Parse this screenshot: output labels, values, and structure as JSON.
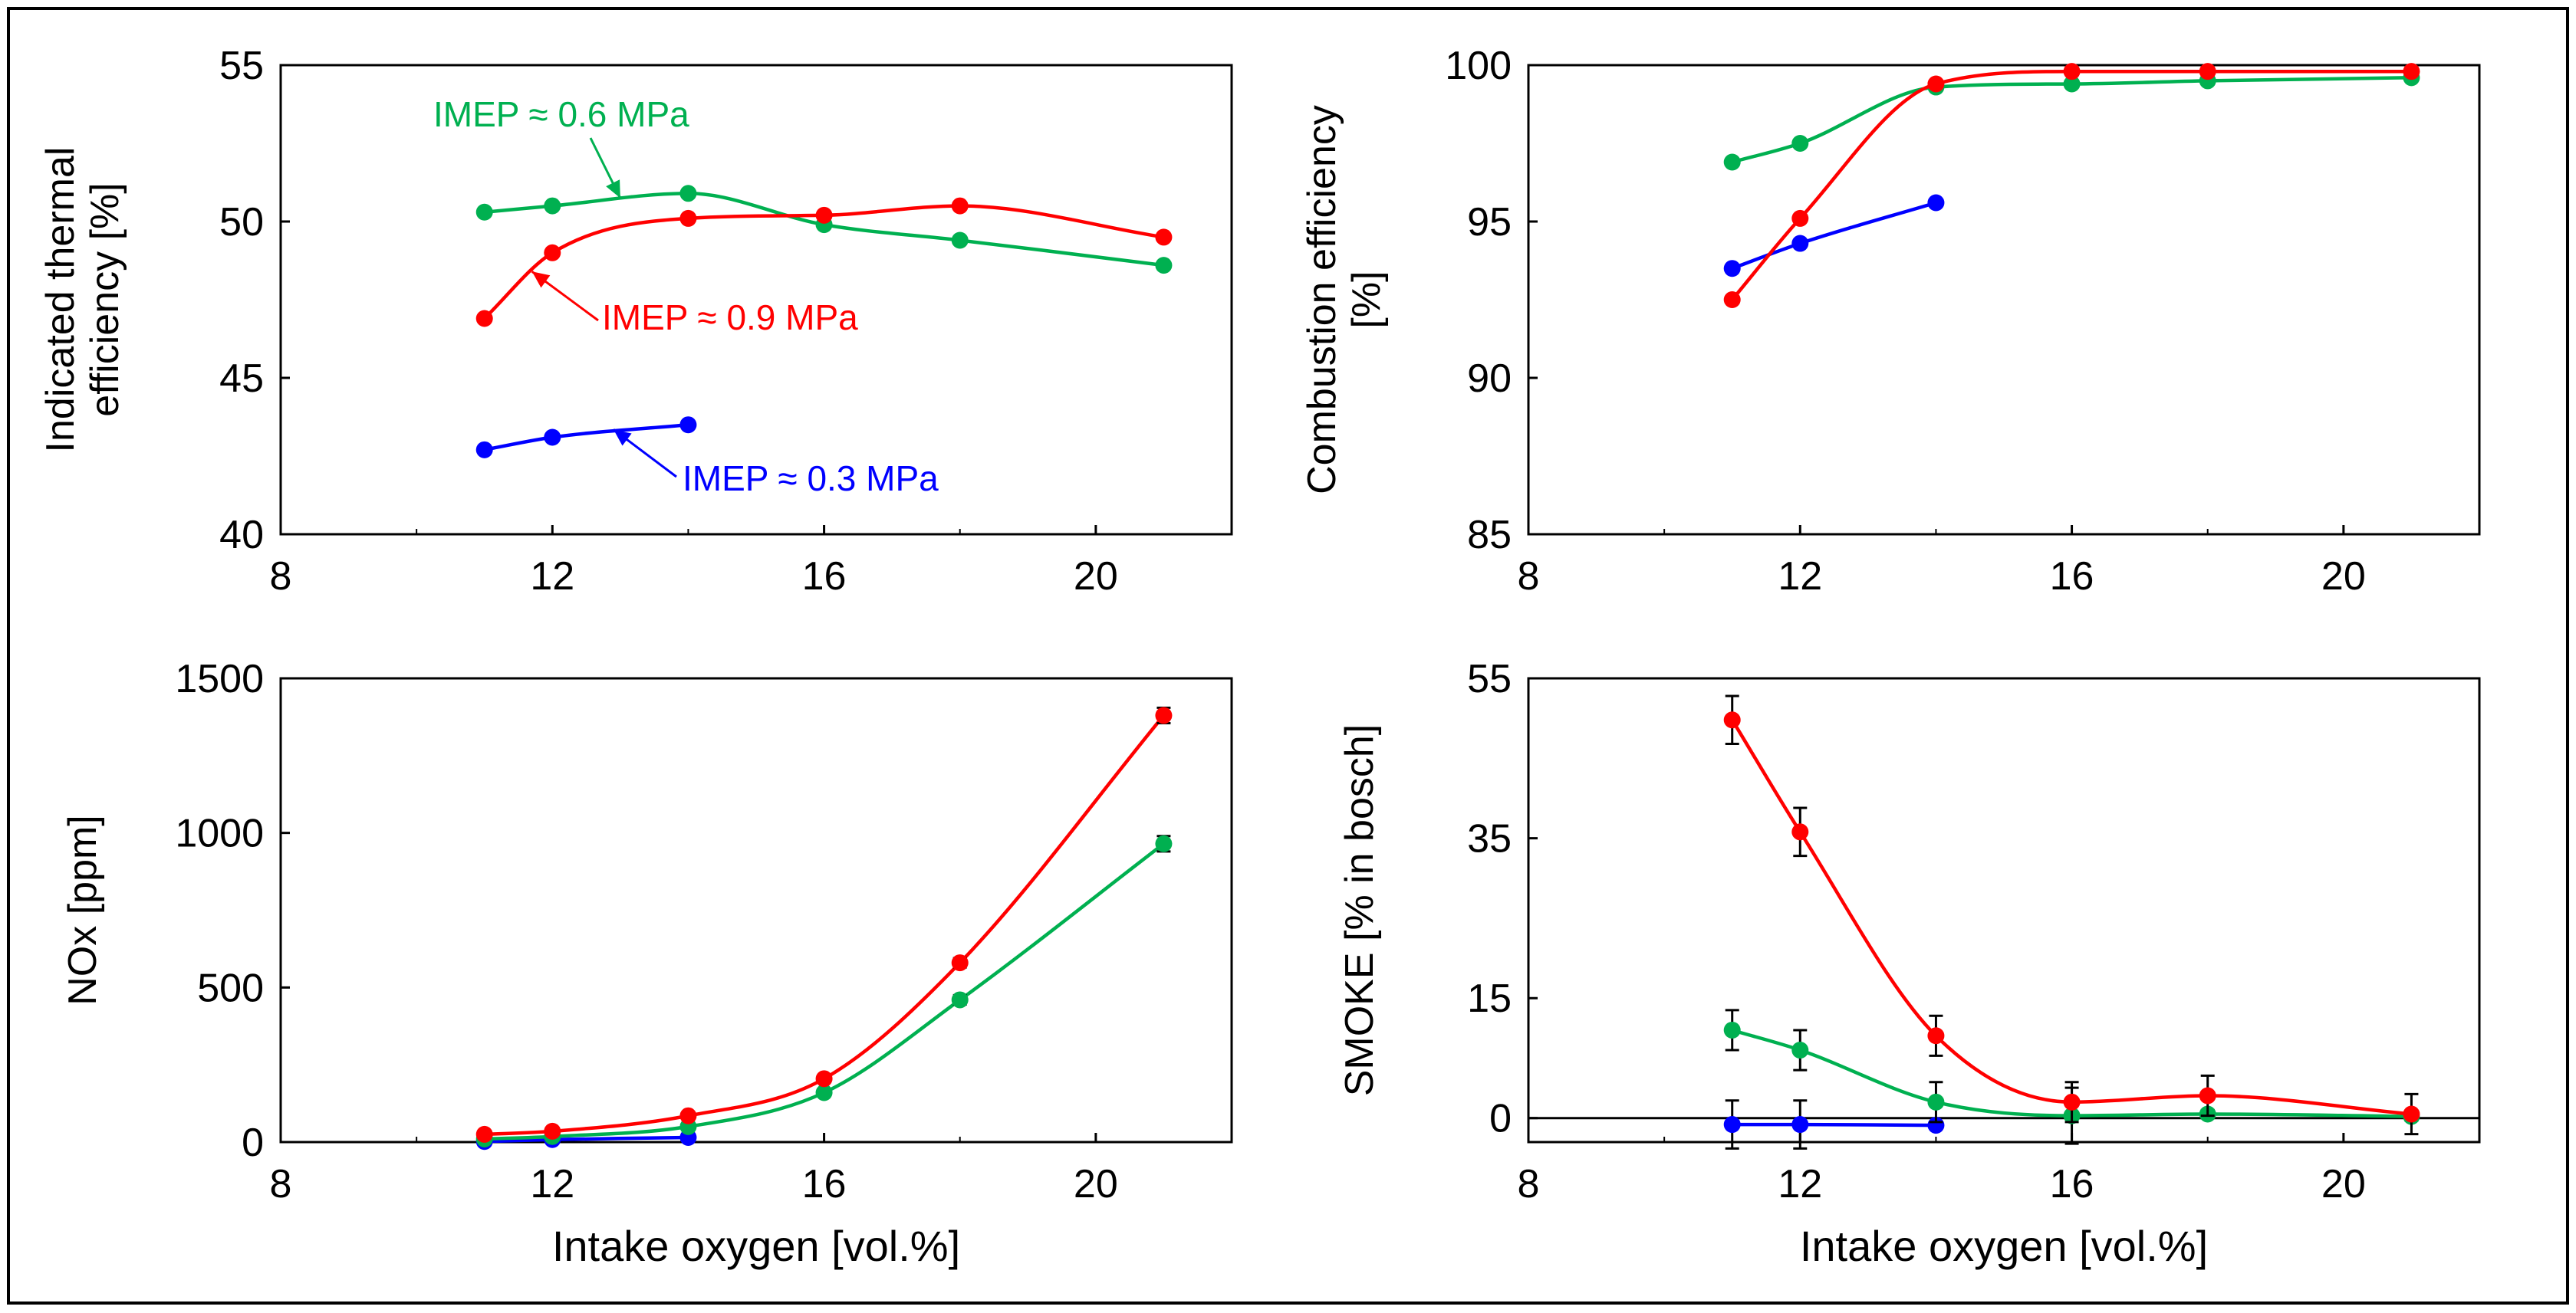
{
  "colors": {
    "low_load": "#0000ff",
    "mid_load": "#00b050",
    "high_load": "#ff0000",
    "axis": "#000000"
  },
  "chart_data": [
    {
      "id": "ite",
      "type": "scatter",
      "title": "",
      "xlabel": "",
      "ylabel_lines": [
        "Indicated thermal",
        "efficiency [%]"
      ],
      "xlim": [
        8,
        22
      ],
      "ylim": [
        40,
        55
      ],
      "xticks": [
        8,
        12,
        16,
        20
      ],
      "yticks": [
        40,
        45,
        50,
        55
      ],
      "grid": false,
      "series": [
        {
          "name": "IMEP ≈ 0.3 MPa",
          "color": "#0000ff",
          "x": [
            11,
            12,
            14
          ],
          "y": [
            42.7,
            43.1,
            43.5
          ]
        },
        {
          "name": "IMEP ≈ 0.6 MPa",
          "color": "#00b050",
          "x": [
            11,
            12,
            14,
            16,
            18,
            21
          ],
          "y": [
            50.3,
            50.5,
            50.9,
            49.9,
            49.4,
            48.6
          ]
        },
        {
          "name": "IMEP ≈ 0.9 MPa",
          "color": "#ff0000",
          "x": [
            11,
            12,
            14,
            16,
            18,
            21
          ],
          "y": [
            46.9,
            49.0,
            50.1,
            50.2,
            50.5,
            49.5
          ]
        }
      ],
      "annotations": [
        {
          "text": "IMEP ≈ 0.6 MPa",
          "series": 1
        },
        {
          "text": "IMEP ≈ 0.9 MPa",
          "series": 2
        },
        {
          "text": "IMEP ≈ 0.3 MPa",
          "series": 0
        }
      ]
    },
    {
      "id": "ce",
      "type": "scatter",
      "title": "",
      "xlabel": "",
      "ylabel_lines": [
        "Combustion efficiency",
        "[%]"
      ],
      "xlim": [
        8,
        22
      ],
      "ylim": [
        85,
        100
      ],
      "xticks": [
        8,
        12,
        16,
        20
      ],
      "yticks": [
        85,
        90,
        95,
        100
      ],
      "grid": false,
      "series": [
        {
          "name": "IMEP ≈ 0.3 MPa",
          "color": "#0000ff",
          "x": [
            11,
            12,
            14
          ],
          "y": [
            93.5,
            94.3,
            95.6
          ]
        },
        {
          "name": "IMEP ≈ 0.6 MPa",
          "color": "#00b050",
          "x": [
            11,
            12,
            14,
            16,
            18,
            21
          ],
          "y": [
            96.9,
            97.5,
            99.3,
            99.4,
            99.5,
            99.6
          ]
        },
        {
          "name": "IMEP ≈ 0.9 MPa",
          "color": "#ff0000",
          "x": [
            11,
            12,
            14,
            16,
            18,
            21
          ],
          "y": [
            92.5,
            95.1,
            99.4,
            99.8,
            99.8,
            99.8
          ]
        }
      ]
    },
    {
      "id": "nox",
      "type": "scatter",
      "title": "",
      "xlabel": "Intake oxygen  [vol.%]",
      "ylabel_lines": [
        "NOx [ppm]"
      ],
      "xlim": [
        8,
        22
      ],
      "ylim": [
        0,
        1500
      ],
      "xticks": [
        8,
        12,
        16,
        20
      ],
      "yticks": [
        0,
        500,
        1000,
        1500
      ],
      "grid": false,
      "series": [
        {
          "name": "IMEP ≈ 0.3 MPa",
          "color": "#0000ff",
          "x": [
            11,
            12,
            14
          ],
          "y": [
            2,
            8,
            15
          ],
          "err": [
            0,
            0,
            0
          ]
        },
        {
          "name": "IMEP ≈ 0.6 MPa",
          "color": "#00b050",
          "x": [
            11,
            12,
            14,
            16,
            18,
            21
          ],
          "y": [
            10,
            18,
            50,
            160,
            460,
            965
          ],
          "err": [
            0,
            0,
            0,
            10,
            15,
            25
          ]
        },
        {
          "name": "IMEP ≈ 0.9 MPa",
          "color": "#ff0000",
          "x": [
            11,
            12,
            14,
            16,
            18,
            21
          ],
          "y": [
            25,
            35,
            85,
            205,
            580,
            1380
          ],
          "err": [
            0,
            0,
            0,
            10,
            15,
            25
          ]
        }
      ]
    },
    {
      "id": "smoke",
      "type": "scatter",
      "title": "",
      "xlabel": "Intake oxygen  [vol.%]",
      "ylabel_lines": [
        "SMOKE [% in bosch]"
      ],
      "xlim": [
        8,
        22
      ],
      "ylim": [
        -3,
        55
      ],
      "xticks": [
        8,
        12,
        16,
        20
      ],
      "yticks": [
        0,
        15,
        35,
        55
      ],
      "ytick_labels": [
        "0",
        "15",
        "35",
        "55"
      ],
      "zero_line": true,
      "grid": false,
      "series": [
        {
          "name": "IMEP ≈ 0.3 MPa",
          "color": "#0000ff",
          "x": [
            11,
            12,
            14
          ],
          "y": [
            -0.8,
            -0.8,
            -0.9
          ],
          "err": [
            3,
            3,
            0.4
          ]
        },
        {
          "name": "IMEP ≈ 0.6 MPa",
          "color": "#00b050",
          "x": [
            11,
            12,
            14,
            16,
            18,
            21
          ],
          "y": [
            11.0,
            8.5,
            2.0,
            0.3,
            0.5,
            0.2
          ],
          "err": [
            2.5,
            2.5,
            2.5,
            3.5,
            0.5,
            0.5
          ]
        },
        {
          "name": "IMEP ≈ 0.9 MPa",
          "color": "#ff0000",
          "x": [
            11,
            12,
            14,
            16,
            18,
            21
          ],
          "y": [
            49.8,
            35.8,
            10.3,
            2.0,
            2.8,
            0.5
          ],
          "err": [
            3,
            3,
            2.5,
            2.5,
            2.5,
            2.5
          ]
        }
      ]
    }
  ]
}
